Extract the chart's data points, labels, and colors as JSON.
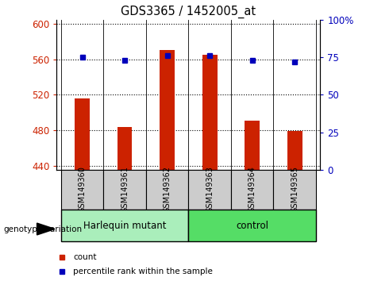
{
  "title": "GDS3365 / 1452005_at",
  "samples": [
    "GSM149360",
    "GSM149361",
    "GSM149362",
    "GSM149363",
    "GSM149364",
    "GSM149365"
  ],
  "counts": [
    516,
    484,
    571,
    565,
    491,
    479
  ],
  "percentile_ranks": [
    75,
    73,
    76,
    76,
    73,
    72
  ],
  "ylim_left": [
    435,
    605
  ],
  "ylim_right": [
    0,
    100
  ],
  "yticks_left": [
    440,
    480,
    520,
    560,
    600
  ],
  "yticks_right": [
    0,
    25,
    50,
    75,
    100
  ],
  "bar_color": "#cc2200",
  "dot_color": "#0000bb",
  "bar_bottom": 435,
  "groups": [
    {
      "label": "Harlequin mutant",
      "indices": [
        0,
        1,
        2
      ],
      "color": "#aaeebb"
    },
    {
      "label": "control",
      "indices": [
        3,
        4,
        5
      ],
      "color": "#55dd66"
    }
  ],
  "sample_box_color": "#cccccc",
  "group_label": "genotype/variation",
  "legend_items": [
    {
      "label": "count",
      "color": "#cc2200"
    },
    {
      "label": "percentile rank within the sample",
      "color": "#0000bb"
    }
  ],
  "left_tick_color": "#cc2200",
  "right_tick_color": "#0000bb",
  "background_color": "#ffffff"
}
